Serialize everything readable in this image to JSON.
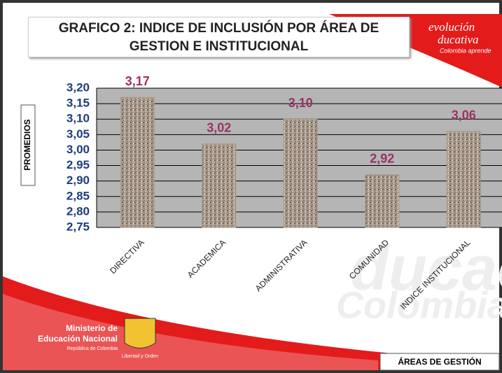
{
  "chart_data": {
    "type": "bar",
    "title": "GRAFICO 2: INDICE DE INCLUSIÓN POR ÁREA DE GESTION E INSTITUCIONAL",
    "y_label": "PROMEDIOS",
    "x_label": "ÁREAS DE GESTIÓN",
    "categories": [
      "DIRECTIVA",
      "ACADEMICA",
      "ADMINISTRATIVA",
      "COMUNIDAD",
      "INDICE INSTITUCIONAL"
    ],
    "values": [
      3.17,
      3.02,
      3.1,
      2.92,
      3.06
    ],
    "value_labels": [
      "3,17",
      "3,02",
      "3,10",
      "2,92",
      "3,06"
    ],
    "color": "#a8998a",
    "label_color": "#993366",
    "ylim": [
      2.75,
      3.2
    ],
    "yticks": [
      {
        "value": 3.2,
        "label": "3,20"
      },
      {
        "value": 3.15,
        "label": "3,15"
      },
      {
        "value": 3.1,
        "label": "3,10"
      },
      {
        "value": 3.05,
        "label": "3,05"
      },
      {
        "value": 3.0,
        "label": "3,00"
      },
      {
        "value": 2.95,
        "label": "2,95"
      },
      {
        "value": 2.9,
        "label": "2,90"
      },
      {
        "value": 2.85,
        "label": "2,85"
      },
      {
        "value": 2.8,
        "label": "2,80"
      },
      {
        "value": 2.75,
        "label": "2,75"
      }
    ],
    "grid": true
  },
  "branding": {
    "logo_top": [
      "evolución",
      "ducativa",
      "Colombia aprende"
    ],
    "ministry": [
      "Ministerio de",
      "Educación Nacional",
      "República de Colombia"
    ],
    "motto": "Libertad y Orden",
    "watermark": [
      "ducac",
      "Colombia"
    ]
  }
}
